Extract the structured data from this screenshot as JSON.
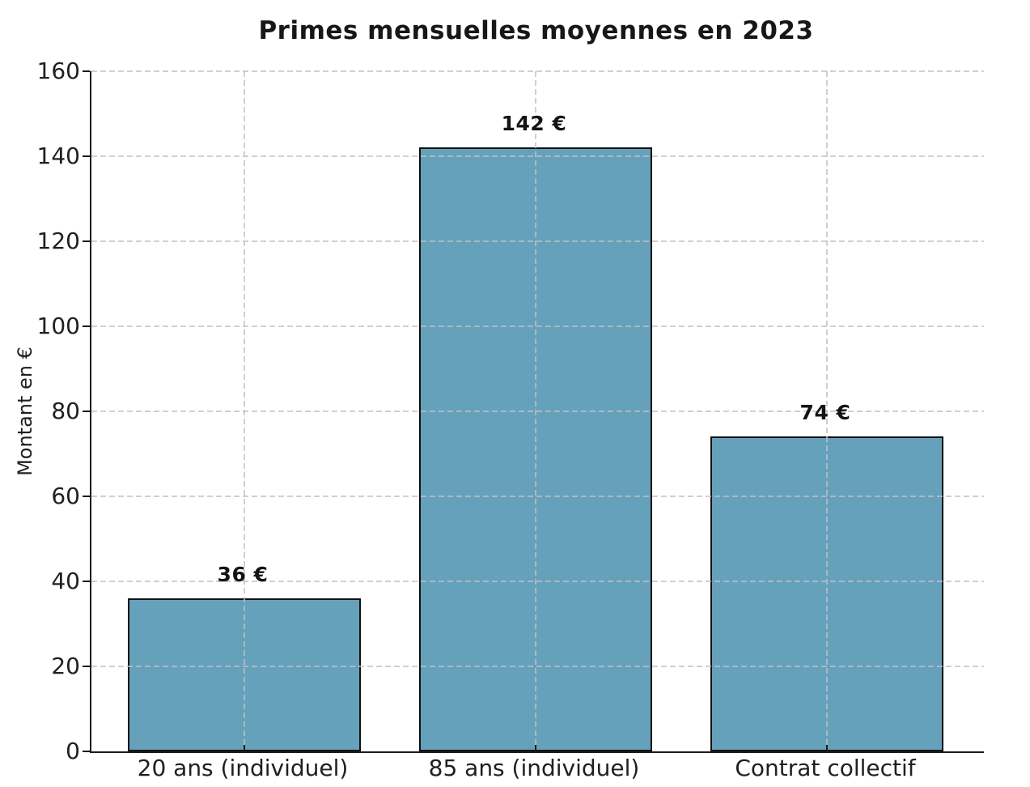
{
  "chart_data": {
    "type": "bar",
    "title": "Primes mensuelles moyennes en 2023",
    "xlabel": "",
    "ylabel": "Montant en €",
    "categories": [
      "20 ans (individuel)",
      "85 ans (individuel)",
      "Contrat collectif"
    ],
    "values": [
      36,
      142,
      74
    ],
    "value_labels": [
      "36 €",
      "142 €",
      "74 €"
    ],
    "ylim": [
      0,
      160
    ],
    "yticks": [
      0,
      20,
      40,
      60,
      80,
      100,
      120,
      140,
      160
    ],
    "grid": true,
    "grid_style": "dashed",
    "legend": "none",
    "bar_color": "#66A1BC",
    "bar_edge_color": "#111111",
    "grid_color": "#c9c9c9",
    "axis_color": "#1a1a1a",
    "text_color": "#202020"
  }
}
